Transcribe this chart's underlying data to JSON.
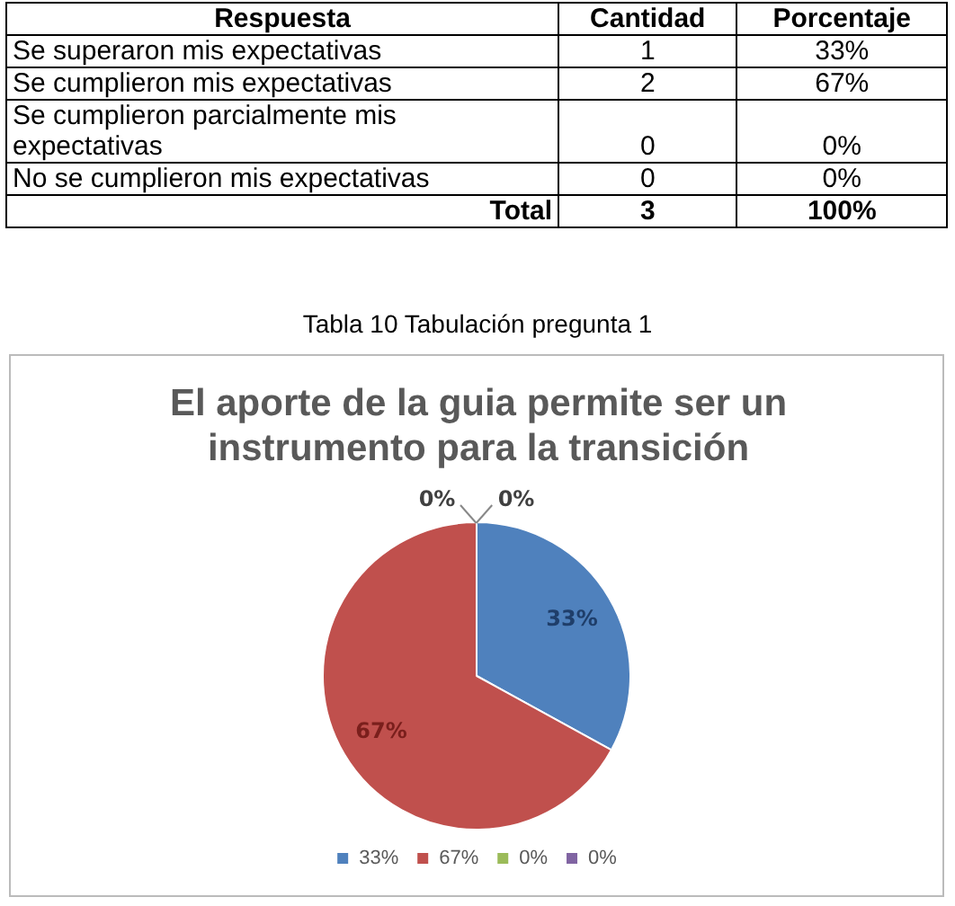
{
  "chart_data": [
    {
      "type": "other",
      "annotations": [
        "Respuesta",
        "Cantidad",
        "Porcentaje",
        "Se superaron mis expectativas",
        "1",
        "33%",
        "Se cumplieron mis expectativas",
        "2",
        "67%",
        "Se cumplieron parcialmente mis expectativas",
        "0",
        "0%",
        "No se cumplieron mis expectativas",
        "0",
        "0%",
        "Total",
        "3",
        "100%",
        "Tabla 10 Tabulación pregunta 1"
      ]
    },
    {
      "type": "pie",
      "title": "El aporte de la guia permite ser un instrumento para la transición",
      "categories": [
        "33%",
        "67%",
        "0%",
        "0%"
      ],
      "values": [
        33,
        67,
        0,
        0
      ],
      "colors": [
        "#4f81bd",
        "#c0504d",
        "#9bbb59",
        "#8064a2"
      ],
      "value_labels": [
        "33%",
        "67%",
        "0%",
        "0%"
      ],
      "legend": "bottom"
    }
  ]
}
